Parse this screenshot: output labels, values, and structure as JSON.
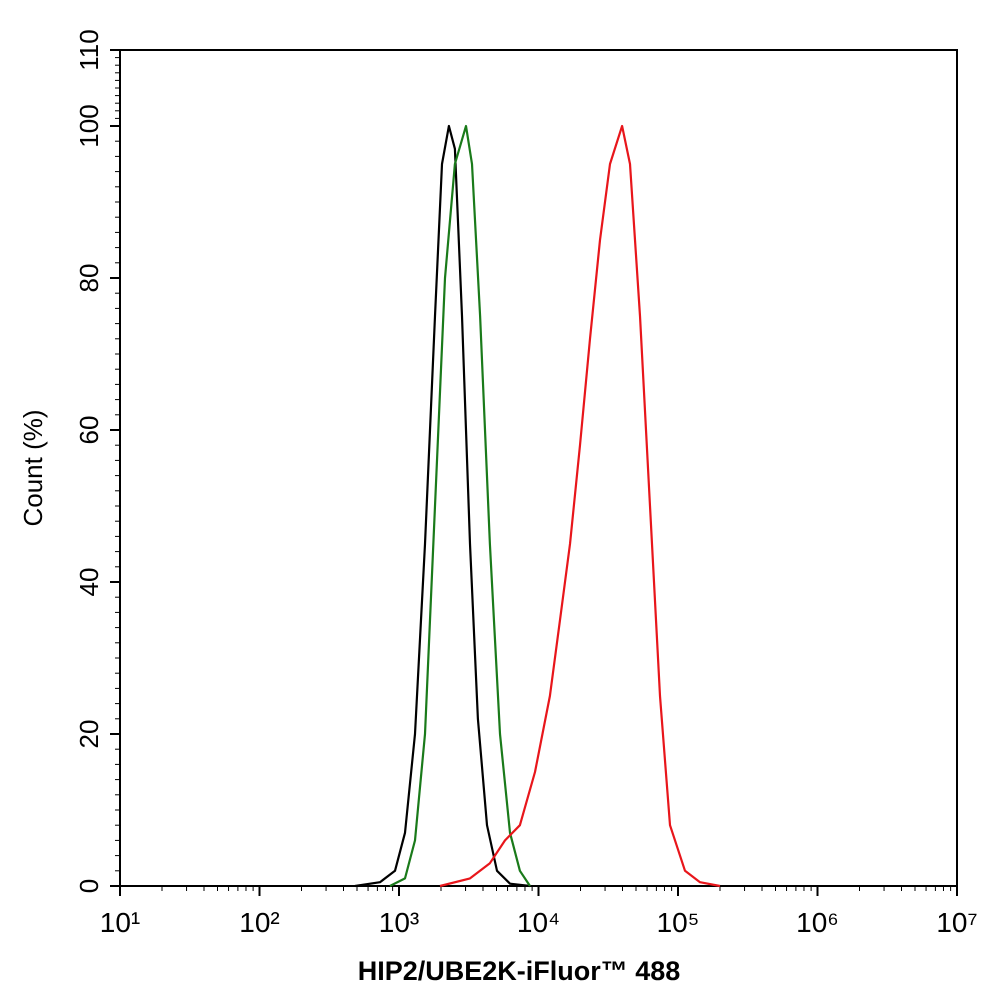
{
  "chart_data": {
    "type": "line",
    "xscale": "log",
    "xlabel": "HIP2/UBE2K-iFluor™ 488",
    "ylabel": "Count  (%)",
    "xlim": [
      10,
      10000000
    ],
    "xticks": [
      {
        "value": 10,
        "label": "10¹"
      },
      {
        "value": 100,
        "label": "10²"
      },
      {
        "value": 1000,
        "label": "10³"
      },
      {
        "value": 10000,
        "label": "10⁴"
      },
      {
        "value": 100000,
        "label": "10⁵"
      },
      {
        "value": 1000000,
        "label": "10⁶"
      },
      {
        "value": 10000000,
        "label": "10⁷"
      }
    ],
    "ylim": [
      0,
      110
    ],
    "yticks": [
      0,
      20,
      40,
      60,
      80,
      100,
      110
    ],
    "series": [
      {
        "color": "#000000",
        "x": [
          484,
          731,
          936,
          1104,
          1302,
          1536,
          1811,
          2032,
          2280,
          2518,
          2830,
          3227,
          3680,
          4272,
          5044,
          6252,
          8690
        ],
        "values": [
          0,
          0.5,
          2,
          7,
          20,
          45,
          75,
          95,
          100,
          97,
          75,
          45,
          22,
          8,
          2,
          0.3,
          0
        ]
      },
      {
        "color": "#1a7a1a",
        "x": [
          861,
          1104,
          1302,
          1536,
          1811,
          2138,
          2518,
          3020,
          3334,
          3811,
          4487,
          5297,
          6252,
          7362,
          8690
        ],
        "values": [
          0,
          1,
          6,
          20,
          50,
          80,
          95,
          100,
          95,
          75,
          45,
          20,
          7,
          2,
          0
        ]
      },
      {
        "color": "#e8161b",
        "x": [
          1967,
          3227,
          4487,
          5754,
          7362,
          9441,
          12080,
          14250,
          16810,
          19830,
          23390,
          27590,
          32550,
          39720,
          45300,
          53450,
          63000,
          74300,
          87700,
          112200,
          143900,
          200000
        ],
        "values": [
          0,
          1,
          3,
          6,
          8,
          15,
          25,
          35,
          45,
          58,
          72,
          85,
          95,
          100,
          95,
          75,
          50,
          25,
          8,
          2,
          0.5,
          0
        ]
      }
    ]
  }
}
